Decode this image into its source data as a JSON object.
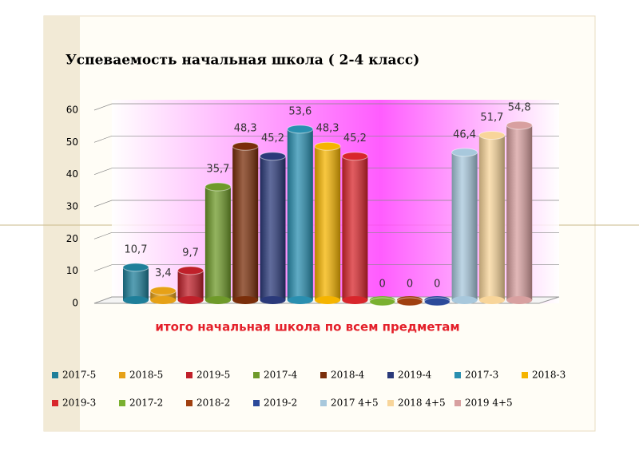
{
  "chart_data": {
    "type": "bar3d",
    "title": "Успеваемость начальная школа ( 2-4  класс)",
    "categories": [
      "итого начальная школа по всем предметам"
    ],
    "ylim": [
      0,
      60
    ],
    "yticks": [
      0,
      10,
      20,
      30,
      40,
      50,
      60
    ],
    "grid": true,
    "legend": "bottom",
    "series": [
      {
        "name": "2017-5",
        "color": "#1f7f9a",
        "values": [
          10.7
        ],
        "value_labels": [
          "10,7"
        ]
      },
      {
        "name": "2018-5",
        "color": "#e6a117",
        "values": [
          3.4
        ],
        "value_labels": [
          "3,4"
        ]
      },
      {
        "name": "2019-5",
        "color": "#c0202a",
        "values": [
          9.7
        ],
        "value_labels": [
          "9,7"
        ]
      },
      {
        "name": "2017-4",
        "color": "#6f9a2a",
        "values": [
          35.7
        ],
        "value_labels": [
          "35,7"
        ]
      },
      {
        "name": "2018-4",
        "color": "#7a2e0a",
        "values": [
          48.3
        ],
        "value_labels": [
          "48,3"
        ]
      },
      {
        "name": "2019-4",
        "color": "#2b3a7a",
        "values": [
          45.2
        ],
        "value_labels": [
          "45,2"
        ]
      },
      {
        "name": "2017-3",
        "color": "#2a8fb0",
        "values": [
          53.6
        ],
        "value_labels": [
          "53,6"
        ]
      },
      {
        "name": "2018-3",
        "color": "#f5b400",
        "values": [
          48.3
        ],
        "value_labels": [
          "48,3"
        ]
      },
      {
        "name": "2019-3",
        "color": "#d8262c",
        "values": [
          45.2
        ],
        "value_labels": [
          "45,2"
        ]
      },
      {
        "name": "2017-2",
        "color": "#7ab030",
        "values": [
          0
        ]
      },
      {
        "name": "2018-2",
        "color": "#a04010",
        "values": [
          0
        ]
      },
      {
        "name": "2019-2",
        "color": "#2c4a9a",
        "values": [
          0
        ]
      },
      {
        "name": "2017 4+5",
        "color": "#a8c8dc",
        "values": [
          46.4
        ],
        "value_labels": [
          "46,4"
        ]
      },
      {
        "name": "2018 4+5",
        "color": "#f8d59a",
        "values": [
          51.7
        ],
        "value_labels": [
          "51,7"
        ]
      },
      {
        "name": "2019 4+5",
        "color": "#d8a0a0",
        "values": [
          54.8
        ],
        "value_labels": [
          "54,8"
        ]
      }
    ]
  }
}
